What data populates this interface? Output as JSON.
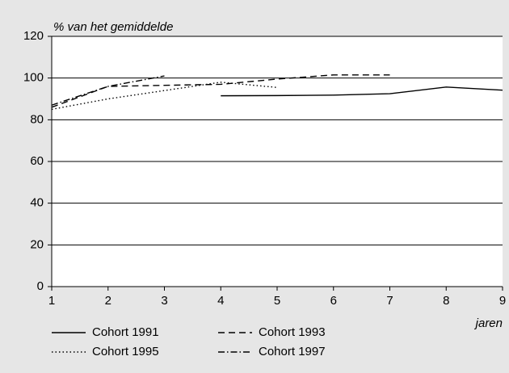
{
  "chart_data": {
    "type": "line",
    "y_label": "% van het gemiddelde",
    "x_label": "jaren",
    "x": [
      1,
      2,
      3,
      4,
      5,
      6,
      7,
      8,
      9
    ],
    "series": [
      {
        "name": "Cohort 1991",
        "color": "#000000",
        "dash": "solid",
        "values": [
          null,
          null,
          null,
          91.5,
          91.6,
          91.8,
          92.5,
          95.7,
          94.2
        ]
      },
      {
        "name": "Cohort 1993",
        "color": "#000000",
        "dash": "dashed",
        "values": [
          86,
          96,
          96.5,
          97,
          99.5,
          101.5,
          101.5,
          null,
          null
        ]
      },
      {
        "name": "Cohort 1995",
        "color": "#000000",
        "dash": "dotted",
        "values": [
          85,
          90,
          94,
          98,
          95.5,
          null,
          null,
          null,
          null
        ]
      },
      {
        "name": "Cohort 1997",
        "color": "#000000",
        "dash": "dashdot",
        "values": [
          87,
          96,
          101,
          null,
          null,
          null,
          null,
          null,
          null
        ]
      }
    ],
    "xlim": [
      1,
      9
    ],
    "xticks": [
      1,
      2,
      3,
      4,
      5,
      6,
      7,
      8,
      9
    ],
    "ylim": [
      0,
      120
    ],
    "yticks": [
      0,
      20,
      40,
      60,
      80,
      100,
      120
    ],
    "grid": true,
    "legend": "bottom"
  }
}
